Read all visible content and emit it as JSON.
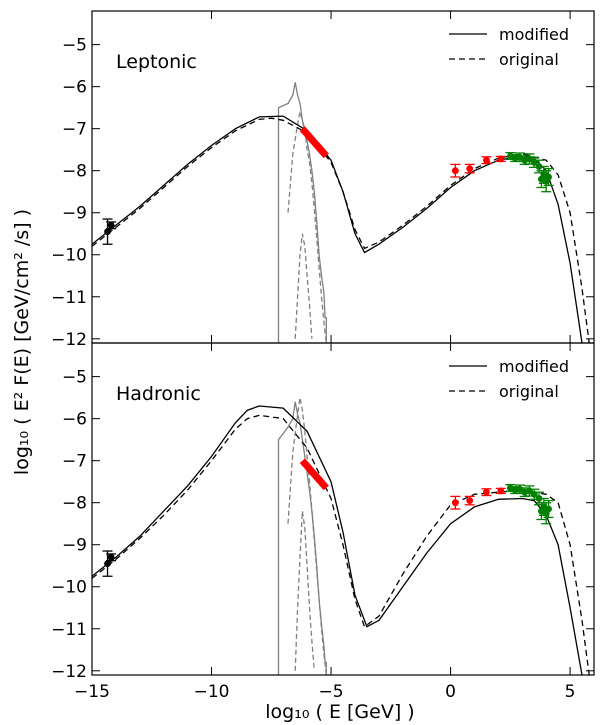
{
  "figure": {
    "ylabel": "log₁₀ ( E² F(E) [GeV/cm² /s] )",
    "xlabel": "log₁₀ ( E [GeV] )"
  },
  "colors": {
    "model": "#000000",
    "synchrotron_components": "#808080",
    "optical_bowtie": "#ff0000",
    "radio_points": "#000000",
    "xray_points": "#ff0000",
    "gamma_points": "#008000"
  },
  "chart_data": [
    {
      "type": "line",
      "panel_label": "Leptonic",
      "xlim": [
        -15,
        6
      ],
      "ylim": [
        -12.1,
        -4.2
      ],
      "x_ticks": [
        -15,
        -10,
        -5,
        0,
        5
      ],
      "x_tick_labels": [
        "−15",
        "−10",
        "−5",
        "0",
        "5"
      ],
      "y_ticks": [
        -12,
        -11,
        -10,
        -9,
        -8,
        -7,
        -6,
        -5
      ],
      "y_tick_labels": [
        "−12",
        "−11",
        "−10",
        "−9",
        "−8",
        "−7",
        "−6",
        "−5"
      ],
      "grid": false,
      "legend": {
        "position": "top-right",
        "entries": [
          "modified",
          "original"
        ]
      },
      "series": [
        {
          "name": "modified",
          "style": "solid",
          "x": [
            -15,
            -14,
            -13,
            -12,
            -11,
            -10,
            -9,
            -8,
            -7,
            -6,
            -5,
            -4.5,
            -4,
            -3.6,
            -3,
            -2,
            -1,
            0,
            1,
            2,
            3,
            3.5,
            4,
            4.5,
            5,
            5.5
          ],
          "y": [
            -9.75,
            -9.3,
            -8.85,
            -8.35,
            -7.85,
            -7.4,
            -7.0,
            -6.72,
            -6.7,
            -7.05,
            -7.75,
            -8.5,
            -9.5,
            -9.95,
            -9.75,
            -9.35,
            -8.9,
            -8.4,
            -8.0,
            -7.75,
            -7.65,
            -7.7,
            -8.0,
            -8.8,
            -10.2,
            -12.2
          ]
        },
        {
          "name": "original",
          "style": "dashed",
          "x": [
            -15,
            -14,
            -13,
            -12,
            -11,
            -10,
            -9,
            -8,
            -7.5,
            -7,
            -6,
            -5,
            -4.5,
            -4,
            -3.6,
            -3,
            -2,
            -1,
            0,
            1,
            2,
            3,
            4,
            4.5,
            5,
            5.5,
            5.8
          ],
          "y": [
            -9.8,
            -9.35,
            -8.9,
            -8.4,
            -7.9,
            -7.45,
            -7.05,
            -6.78,
            -6.75,
            -6.8,
            -7.1,
            -7.8,
            -8.5,
            -9.4,
            -9.85,
            -9.7,
            -9.3,
            -8.85,
            -8.35,
            -7.95,
            -7.7,
            -7.6,
            -7.75,
            -8.1,
            -9.0,
            -10.8,
            -12.2
          ]
        }
      ],
      "components": [
        {
          "style": "solid",
          "x": [
            -7.2,
            -7.2,
            -6.8,
            -6.6,
            -6.5,
            -6.4,
            -6.3,
            -6.2,
            -6.1,
            -6.0,
            -5.9,
            -5.8,
            -5.7,
            -5.6,
            -5.5,
            -5.4,
            -5.3,
            -5.25,
            -5.2,
            -5.2
          ],
          "y": [
            -12.1,
            -6.5,
            -6.4,
            -6.2,
            -5.9,
            -6.2,
            -6.4,
            -6.8,
            -7.1,
            -7.3,
            -7.6,
            -8.0,
            -8.5,
            -9.2,
            -10.0,
            -10.5,
            -10.9,
            -11.5,
            -11.5,
            -12.1
          ]
        },
        {
          "style": "dashed",
          "x": [
            -6.8,
            -6.6,
            -6.4,
            -6.3,
            -6.2,
            -6.1,
            -6.0,
            -5.9,
            -5.8,
            -5.7,
            -5.6,
            -5.5,
            -5.4,
            -5.3,
            -5.2
          ],
          "y": [
            -9.0,
            -7.6,
            -6.9,
            -6.6,
            -6.8,
            -7.0,
            -7.5,
            -7.8,
            -8.3,
            -8.9,
            -9.6,
            -10.3,
            -11.0,
            -11.6,
            -12.1
          ]
        },
        {
          "style": "dashed",
          "x": [
            -6.5,
            -6.4,
            -6.3,
            -6.2,
            -6.1,
            -6.0,
            -5.9,
            -5.8
          ],
          "y": [
            -12.0,
            -11.0,
            -10.0,
            -9.5,
            -9.8,
            -10.5,
            -11.2,
            -12.0
          ]
        }
      ],
      "bowtie": {
        "x": [
          -6.2,
          -5.2
        ],
        "y": [
          -7.0,
          -7.65
        ]
      },
      "data_points": [
        {
          "group": "radio",
          "x": [
            -14.35,
            -14.2
          ],
          "y": [
            -9.45,
            -9.3
          ],
          "err": [
            0.3,
            0.08
          ]
        },
        {
          "group": "xray",
          "x": [
            0.2,
            0.8,
            1.5,
            2.1
          ],
          "y": [
            -8.0,
            -7.95,
            -7.75,
            -7.72
          ],
          "err": [
            0.15,
            0.1,
            0.08,
            0.06
          ]
        },
        {
          "group": "gamma",
          "x": [
            2.5,
            2.7,
            2.9,
            3.1,
            3.3,
            3.5,
            3.7,
            3.8,
            3.9,
            4.0,
            4.1
          ],
          "y": [
            -7.65,
            -7.7,
            -7.68,
            -7.75,
            -7.72,
            -7.8,
            -7.9,
            -8.2,
            -8.1,
            -8.25,
            -8.15
          ],
          "err": [
            0.08,
            0.08,
            0.1,
            0.1,
            0.12,
            0.12,
            0.15,
            0.2,
            0.2,
            0.25,
            0.2
          ]
        }
      ]
    },
    {
      "type": "line",
      "panel_label": "Hadronic",
      "xlim": [
        -15,
        6
      ],
      "ylim": [
        -12.1,
        -4.2
      ],
      "x_ticks": [
        -15,
        -10,
        -5,
        0,
        5
      ],
      "x_tick_labels": [
        "−15",
        "−10",
        "−5",
        "0",
        "5"
      ],
      "y_ticks": [
        -12,
        -11,
        -10,
        -9,
        -8,
        -7,
        -6,
        -5
      ],
      "y_tick_labels": [
        "−12",
        "−11",
        "−10",
        "−9",
        "−8",
        "−7",
        "−6",
        "−5"
      ],
      "grid": false,
      "legend": {
        "position": "top-right",
        "entries": [
          "modified",
          "original"
        ]
      },
      "series": [
        {
          "name": "modified",
          "style": "solid",
          "x": [
            -15,
            -14,
            -13,
            -12,
            -11,
            -10,
            -9,
            -8.5,
            -8,
            -7,
            -6,
            -5,
            -4.5,
            -4,
            -3.5,
            -3,
            -2,
            -1,
            0,
            1,
            2,
            3,
            3.5,
            4,
            4.5,
            5,
            5.5
          ],
          "y": [
            -9.75,
            -9.3,
            -8.8,
            -8.2,
            -7.6,
            -6.9,
            -6.1,
            -5.8,
            -5.7,
            -5.75,
            -6.3,
            -7.5,
            -8.7,
            -10.2,
            -10.95,
            -10.8,
            -10.0,
            -9.2,
            -8.5,
            -8.1,
            -7.92,
            -7.9,
            -7.95,
            -8.3,
            -9.0,
            -10.5,
            -12.2
          ]
        },
        {
          "name": "original",
          "style": "dashed",
          "x": [
            -15,
            -14,
            -13,
            -12,
            -11,
            -10,
            -9,
            -8.5,
            -8,
            -7,
            -6,
            -5,
            -4.5,
            -4,
            -3.6,
            -3,
            -2,
            -1,
            0,
            1,
            2,
            3,
            4,
            4.5,
            5,
            5.5,
            5.8
          ],
          "y": [
            -9.8,
            -9.35,
            -8.85,
            -8.3,
            -7.7,
            -7.0,
            -6.25,
            -6.0,
            -5.92,
            -6.0,
            -6.7,
            -7.9,
            -9.0,
            -10.3,
            -10.95,
            -10.7,
            -9.7,
            -8.8,
            -8.05,
            -7.8,
            -7.75,
            -7.7,
            -7.8,
            -8.0,
            -9.0,
            -10.8,
            -12.2
          ]
        }
      ],
      "components": [
        {
          "style": "solid",
          "x": [
            -7.2,
            -7.2,
            -6.8,
            -6.6,
            -6.5,
            -6.4,
            -6.3,
            -6.2,
            -6.1,
            -6.0,
            -5.9,
            -5.8,
            -5.7,
            -5.6,
            -5.5,
            -5.4,
            -5.3,
            -5.25,
            -5.2,
            -5.2
          ],
          "y": [
            -12.1,
            -6.5,
            -6.2,
            -6.0,
            -5.6,
            -5.9,
            -6.1,
            -6.5,
            -6.9,
            -7.3,
            -7.7,
            -8.2,
            -8.8,
            -9.5,
            -10.3,
            -10.9,
            -11.4,
            -11.8,
            -11.8,
            -12.1
          ]
        },
        {
          "style": "dashed",
          "x": [
            -6.8,
            -6.6,
            -6.4,
            -6.3,
            -6.2,
            -6.1,
            -6.0,
            -5.9,
            -5.8,
            -5.7,
            -5.6,
            -5.5,
            -5.4,
            -5.3,
            -5.2
          ],
          "y": [
            -8.5,
            -6.8,
            -5.9,
            -5.5,
            -5.8,
            -6.3,
            -6.9,
            -7.5,
            -8.2,
            -8.9,
            -9.6,
            -10.3,
            -11.0,
            -11.6,
            -12.1
          ]
        },
        {
          "style": "dashed",
          "x": [
            -6.5,
            -6.4,
            -6.3,
            -6.2,
            -6.1,
            -6.0,
            -5.9,
            -5.8,
            -5.7
          ],
          "y": [
            -12.0,
            -10.5,
            -9.3,
            -8.2,
            -8.6,
            -9.5,
            -10.5,
            -11.3,
            -12.0
          ]
        }
      ],
      "bowtie": {
        "x": [
          -6.2,
          -5.2
        ],
        "y": [
          -7.0,
          -7.65
        ]
      },
      "data_points": [
        {
          "group": "radio",
          "x": [
            -14.35,
            -14.2
          ],
          "y": [
            -9.45,
            -9.3
          ],
          "err": [
            0.3,
            0.08
          ]
        },
        {
          "group": "xray",
          "x": [
            0.2,
            0.8,
            1.5,
            2.1
          ],
          "y": [
            -8.0,
            -7.95,
            -7.75,
            -7.72
          ],
          "err": [
            0.15,
            0.1,
            0.08,
            0.06
          ]
        },
        {
          "group": "gamma",
          "x": [
            2.5,
            2.7,
            2.9,
            3.1,
            3.3,
            3.5,
            3.7,
            3.8,
            3.9,
            4.0,
            4.1
          ],
          "y": [
            -7.65,
            -7.7,
            -7.68,
            -7.75,
            -7.72,
            -7.8,
            -7.9,
            -8.2,
            -8.1,
            -8.25,
            -8.15
          ],
          "err": [
            0.08,
            0.08,
            0.1,
            0.1,
            0.12,
            0.12,
            0.15,
            0.2,
            0.2,
            0.25,
            0.2
          ]
        }
      ]
    }
  ]
}
